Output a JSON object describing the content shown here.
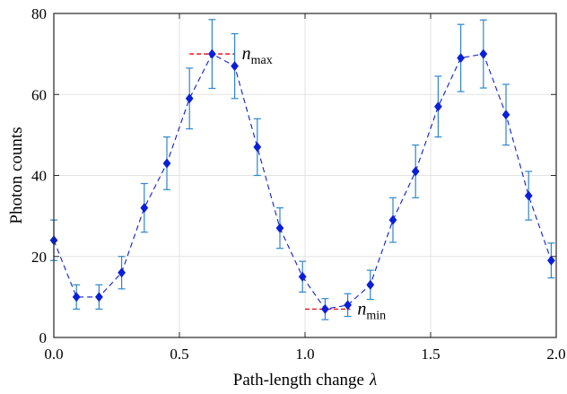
{
  "chart_data": {
    "type": "line",
    "xlabel": "Path-length change",
    "xlabel_symbol": "λ",
    "ylabel": "Photon counts",
    "xlim": [
      0,
      2.0
    ],
    "ylim": [
      0,
      80
    ],
    "xticks": [
      0.0,
      0.5,
      1.0,
      1.5,
      2.0
    ],
    "xtick_labels": [
      "0.0",
      "0.5",
      "1.0",
      "1.5",
      "2.0"
    ],
    "yticks": [
      0,
      20,
      40,
      60,
      80
    ],
    "ytick_labels": [
      "0",
      "20",
      "40",
      "60",
      "80"
    ],
    "grid": true,
    "series": [
      {
        "marker": "diamond",
        "line_style": "dashed",
        "color": "#0a1fd8",
        "errorbar_color": "#2f86c9",
        "x": [
          0.0,
          0.09,
          0.18,
          0.27,
          0.36,
          0.45,
          0.54,
          0.63,
          0.72,
          0.81,
          0.9,
          0.99,
          1.08,
          1.17,
          1.26,
          1.35,
          1.44,
          1.53,
          1.62,
          1.71,
          1.8,
          1.89,
          1.98
        ],
        "y": [
          24,
          10,
          10,
          16,
          32,
          43,
          59,
          70,
          67,
          47,
          27,
          15,
          7,
          8,
          13,
          29,
          41,
          57,
          69,
          70,
          55,
          35,
          19
        ],
        "yerr": [
          5,
          3,
          3,
          4,
          6,
          6.5,
          7.5,
          8.5,
          8,
          7,
          5,
          3.8,
          2.6,
          2.8,
          3.6,
          5.5,
          6.5,
          7.5,
          8.3,
          8.4,
          7.5,
          6,
          4.3
        ]
      }
    ],
    "annotations": [
      {
        "label_main": "n",
        "label_sub": "max",
        "y": 70,
        "x_range": [
          0.54,
          0.72
        ],
        "color": "#e8141b",
        "line_style": "dashed"
      },
      {
        "label_main": "n",
        "label_sub": "min",
        "y": 7,
        "x_range": [
          1.0,
          1.18
        ],
        "color": "#e8141b",
        "line_style": "dashed"
      }
    ]
  }
}
